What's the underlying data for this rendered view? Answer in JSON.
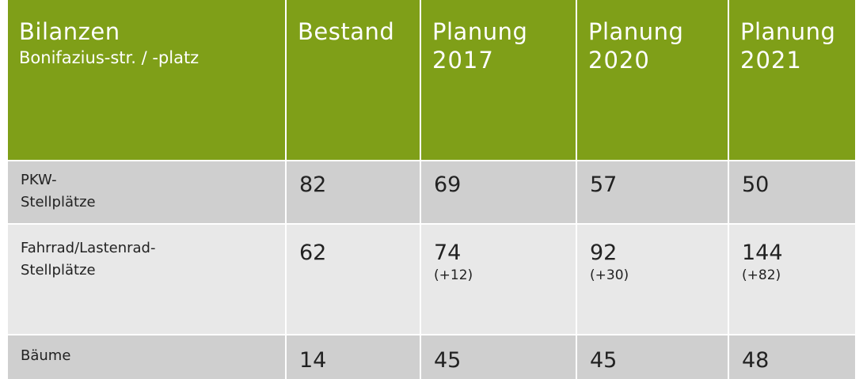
{
  "table": {
    "header": [
      [
        "Bilanzen",
        "Bonifazius-str. / -platz"
      ],
      [
        "Bestand"
      ],
      [
        "Planung",
        "2017"
      ],
      [
        "Planung",
        "2020"
      ],
      [
        "Planung",
        "2021"
      ]
    ],
    "rows": [
      [
        [
          "PKW-",
          "Stellplätze"
        ],
        [
          "82"
        ],
        [
          "69"
        ],
        [
          "57"
        ],
        [
          "50"
        ]
      ],
      [
        [
          "Fahrrad/Lastenrad-",
          "Stellplätze"
        ],
        [
          "62"
        ],
        [
          "74",
          "(+12)"
        ],
        [
          "92",
          "(+30)"
        ],
        [
          "144",
          "(+82)"
        ]
      ],
      [
        [
          "Bäume"
        ],
        [
          "14"
        ],
        [
          "45"
        ],
        [
          "45"
        ],
        [
          "48"
        ]
      ]
    ]
  }
}
